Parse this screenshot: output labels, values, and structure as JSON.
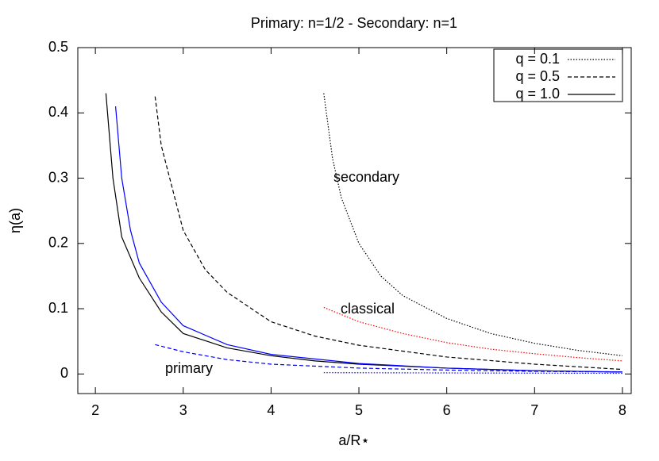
{
  "chart_data": {
    "type": "line",
    "title": "Primary: n=1/2 - Secondary: n=1",
    "xlabel": "a/R⋆",
    "ylabel": "η(a)",
    "xlim": [
      1.8,
      8.1
    ],
    "ylim": [
      -0.03,
      0.5
    ],
    "xticks": [
      2,
      3,
      4,
      5,
      6,
      7,
      8
    ],
    "yticks": [
      0,
      0.1,
      0.2,
      0.3,
      0.4,
      0.5
    ],
    "legend": "upper right",
    "annotations": [
      {
        "text": "secondary",
        "color": "#000000"
      },
      {
        "text": "classical",
        "color": "#ff0000"
      },
      {
        "text": "primary",
        "color": "#0000ff"
      }
    ],
    "series": [
      {
        "name": "q = 0.1",
        "color": "#000000",
        "dash": "dotted",
        "x": [
          4.6,
          4.7,
          4.8,
          5,
          5.25,
          5.5,
          6,
          6.5,
          7,
          7.5,
          8
        ],
        "values": [
          0.43,
          0.33,
          0.27,
          0.2,
          0.15,
          0.12,
          0.085,
          0.062,
          0.047,
          0.036,
          0.028
        ]
      },
      {
        "name": "q = 0.5",
        "color": "#000000",
        "dash": "dashed",
        "x": [
          2.68,
          2.75,
          3,
          3.25,
          3.5,
          4,
          4.5,
          5,
          6,
          7,
          8
        ],
        "values": [
          0.425,
          0.35,
          0.22,
          0.16,
          0.125,
          0.08,
          0.058,
          0.044,
          0.026,
          0.015,
          0.007
        ]
      },
      {
        "name": "q = 1.0",
        "color": "#000000",
        "dash": "solid",
        "x": [
          2.12,
          2.2,
          2.3,
          2.5,
          2.75,
          3,
          3.5,
          4,
          4.5,
          5,
          6,
          7,
          8
        ],
        "values": [
          0.43,
          0.3,
          0.21,
          0.147,
          0.095,
          0.062,
          0.04,
          0.028,
          0.02,
          0.015,
          0.009,
          0.005,
          0.003
        ]
      },
      {
        "color": "#0000ff",
        "dash": "solid",
        "x": [
          2.23,
          2.3,
          2.4,
          2.5,
          2.75,
          3,
          3.5,
          4,
          5,
          6,
          7,
          8
        ],
        "values": [
          0.41,
          0.3,
          0.22,
          0.17,
          0.11,
          0.074,
          0.045,
          0.03,
          0.016,
          0.009,
          0.005,
          0.003
        ]
      },
      {
        "color": "#0000ff",
        "dash": "dashed",
        "x": [
          2.68,
          3,
          3.5,
          4,
          5,
          6,
          7,
          8
        ],
        "values": [
          0.045,
          0.034,
          0.022,
          0.015,
          0.009,
          0.006,
          0.004,
          0.003
        ]
      },
      {
        "color": "#0000ff",
        "dash": "dotted",
        "x": [
          4.6,
          8
        ],
        "values": [
          0.002,
          0.001
        ]
      },
      {
        "color": "#ff0000",
        "dash": "dotted",
        "x": [
          4.6,
          5,
          5.5,
          6,
          6.5,
          7,
          7.5,
          8
        ],
        "values": [
          0.102,
          0.08,
          0.062,
          0.048,
          0.038,
          0.031,
          0.025,
          0.02
        ]
      }
    ]
  }
}
